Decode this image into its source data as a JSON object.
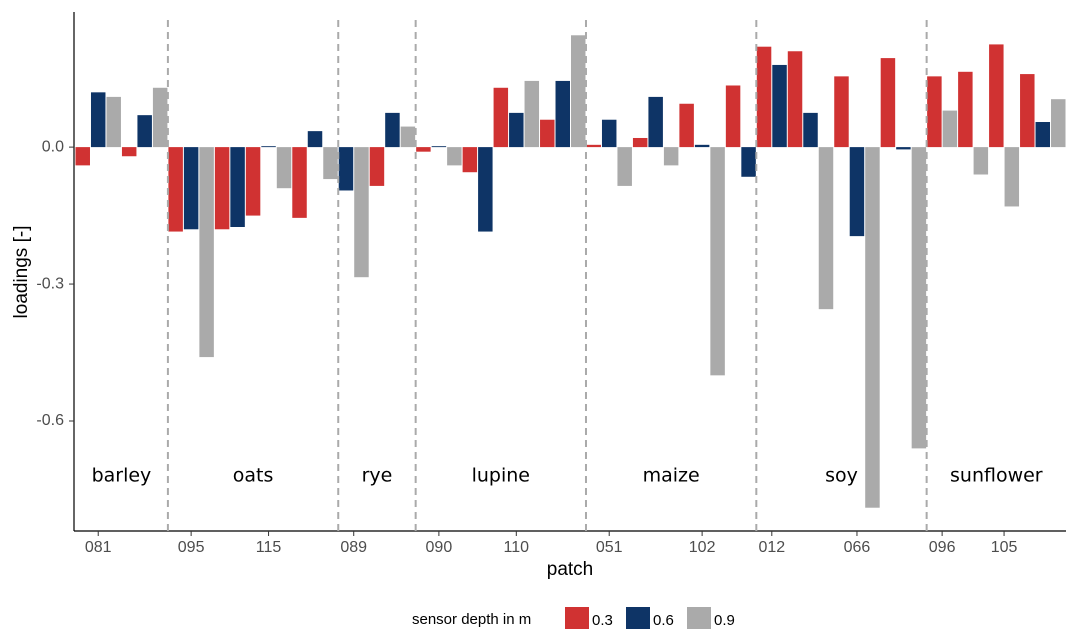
{
  "chart_data": {
    "type": "bar",
    "x_label": "patch",
    "y_label": "loadings [-]",
    "categories": [
      "081",
      null,
      "095",
      null,
      "115",
      null,
      "089",
      null,
      "090",
      null,
      "110",
      null,
      "051",
      null,
      "102",
      null,
      "012",
      null,
      "066",
      null,
      "096",
      null,
      "105",
      null
    ],
    "series": [
      {
        "name": "0.3",
        "color": "#d03232",
        "values": [
          -0.04,
          -0.02,
          -0.185,
          -0.18,
          -0.15,
          -0.155,
          null,
          -0.085,
          -0.01,
          -0.055,
          0.13,
          0.06,
          0.005,
          0.02,
          0.095,
          0.135,
          0.22,
          0.21,
          0.155,
          0.195,
          0.155,
          0.165,
          0.225,
          0.16
        ]
      },
      {
        "name": "0.6",
        "color": "#0e3466",
        "values": [
          0.12,
          0.07,
          -0.18,
          -0.175,
          0.002,
          0.035,
          -0.095,
          0.075,
          0.002,
          -0.185,
          0.075,
          0.145,
          0.06,
          0.11,
          0.005,
          -0.065,
          0.18,
          0.075,
          -0.195,
          -0.005,
          null,
          null,
          null,
          0.055
        ]
      },
      {
        "name": "0.9",
        "color": "#aaaaaa",
        "values": [
          0.11,
          0.13,
          -0.46,
          null,
          -0.09,
          -0.07,
          -0.285,
          0.045,
          -0.04,
          null,
          0.145,
          0.245,
          -0.085,
          -0.04,
          -0.5,
          null,
          null,
          -0.355,
          -0.79,
          -0.66,
          0.08,
          -0.06,
          -0.13,
          0.105
        ]
      }
    ],
    "sections": [
      {
        "name": "barley",
        "count": 2
      },
      {
        "name": "oats",
        "count": 4
      },
      {
        "name": "rye",
        "count": 2
      },
      {
        "name": "lupine",
        "count": 4
      },
      {
        "name": "maize",
        "count": 4
      },
      {
        "name": "soy",
        "count": 4
      },
      {
        "name": "sunflower",
        "count": 4
      }
    ],
    "legend_title": "sensor depth in m",
    "ylim": [
      -0.841,
      0.296
    ],
    "yticks": [
      -0.6,
      -0.3,
      {
        "value": 0,
        "label": "0.0"
      }
    ],
    "grid": false
  }
}
